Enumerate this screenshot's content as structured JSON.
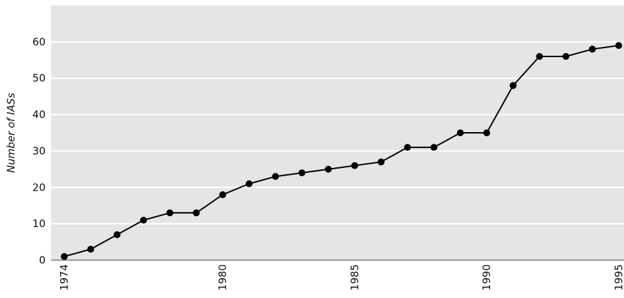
{
  "chart_data": {
    "type": "line",
    "title": "",
    "xlabel": "",
    "ylabel": "Number of IASs",
    "x": [
      1974,
      1975,
      1976,
      1977,
      1978,
      1979,
      1980,
      1981,
      1982,
      1983,
      1984,
      1985,
      1986,
      1987,
      1988,
      1989,
      1990,
      1991,
      1992,
      1993,
      1994,
      1995
    ],
    "series": [
      {
        "values": [
          1,
          3,
          7,
          11,
          13,
          13,
          18,
          21,
          23,
          24,
          25,
          26,
          27,
          31,
          31,
          35,
          35,
          48,
          56,
          56,
          58,
          59
        ]
      }
    ],
    "xticks": [
      "1974",
      "1980",
      "1985",
      "1990",
      "1995"
    ],
    "yticks": [
      "0",
      "10",
      "20",
      "30",
      "40",
      "50",
      "60"
    ],
    "xlim": [
      1973.5,
      1995.2
    ],
    "ylim": [
      0,
      70
    ],
    "grid": true,
    "colors": {
      "plot_background": "#e5e5e5",
      "gridline": "#ffffff",
      "line": "#000000",
      "marker": "#000000",
      "axis": "#999999"
    }
  }
}
